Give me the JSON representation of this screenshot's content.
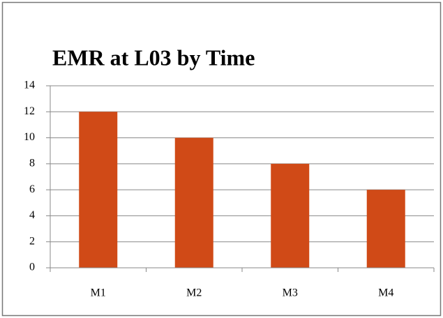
{
  "chart_data": {
    "type": "bar",
    "title": "EMR at L03 by Time",
    "categories": [
      "M1",
      "M2",
      "M3",
      "M4"
    ],
    "values": [
      12,
      10,
      8,
      6
    ],
    "color": "#d04a17",
    "ylim": [
      0,
      14
    ],
    "yticks": [
      0,
      2,
      4,
      6,
      8,
      10,
      12,
      14
    ],
    "grid": true
  }
}
